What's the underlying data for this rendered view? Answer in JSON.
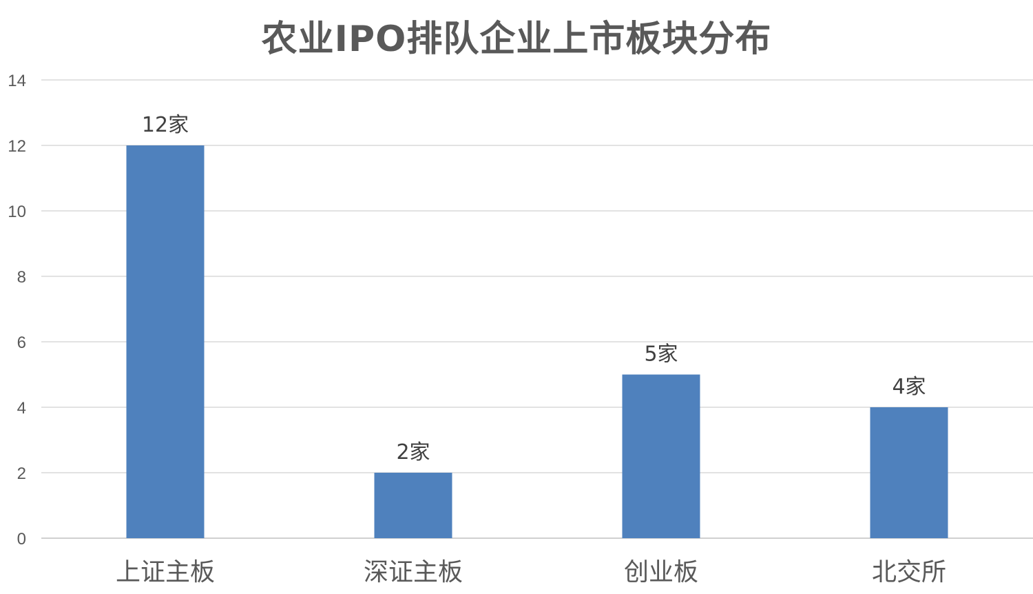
{
  "chart_data": {
    "type": "bar",
    "title": "农业IPO排队企业上市板块分布",
    "categories": [
      "上证主板",
      "深证主板",
      "创业板",
      "北交所"
    ],
    "values": [
      12,
      2,
      5,
      4
    ],
    "data_labels": [
      "12家",
      "2家",
      "5家",
      "4家"
    ],
    "xlabel": "",
    "ylabel": "",
    "ylim": [
      0,
      14
    ],
    "yticks": [
      "0",
      "2",
      "4",
      "6",
      "8",
      "10",
      "12",
      "14"
    ],
    "grid": true,
    "legend": "none",
    "bar_color": "#4f81bd"
  }
}
